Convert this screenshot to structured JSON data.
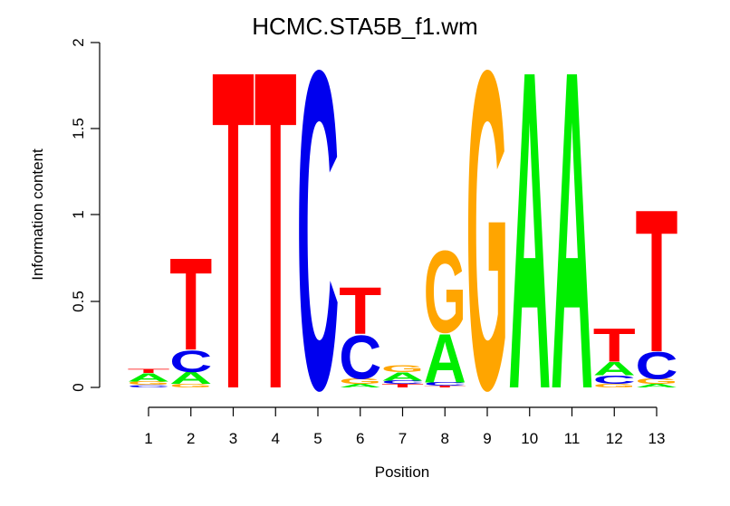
{
  "chart_data": {
    "type": "sequence-logo",
    "title": "HCMC.STA5B_f1.wm",
    "xlabel": "Position",
    "ylabel": "Information content",
    "ylim": [
      0,
      2
    ],
    "yticks": [
      "0",
      "0.5",
      "1",
      "1.5",
      "2"
    ],
    "ytick_values": [
      0,
      0.5,
      1,
      1.5,
      2
    ],
    "positions": [
      "1",
      "2",
      "3",
      "4",
      "5",
      "6",
      "7",
      "8",
      "9",
      "10",
      "11",
      "12",
      "13"
    ],
    "colors": {
      "A": "#00ee00",
      "C": "#0000ee",
      "G": "#ffa500",
      "T": "#ff0000"
    },
    "stacks": [
      [
        {
          "letter": "C",
          "height": 0.015
        },
        {
          "letter": "G",
          "height": 0.02
        },
        {
          "letter": "A",
          "height": 0.05
        },
        {
          "letter": "T",
          "height": 0.025
        }
      ],
      [
        {
          "letter": "G",
          "height": 0.02
        },
        {
          "letter": "A",
          "height": 0.07
        },
        {
          "letter": "C",
          "height": 0.13
        },
        {
          "letter": "T",
          "height": 0.55
        }
      ],
      [
        {
          "letter": "T",
          "height": 1.9
        }
      ],
      [
        {
          "letter": "T",
          "height": 1.9
        }
      ],
      [
        {
          "letter": "C",
          "height": 1.9
        }
      ],
      [
        {
          "letter": "A",
          "height": 0.02
        },
        {
          "letter": "G",
          "height": 0.03
        },
        {
          "letter": "C",
          "height": 0.26
        },
        {
          "letter": "T",
          "height": 0.28
        }
      ],
      [
        {
          "letter": "T",
          "height": 0.02
        },
        {
          "letter": "C",
          "height": 0.02
        },
        {
          "letter": "A",
          "height": 0.05
        },
        {
          "letter": "G",
          "height": 0.04
        }
      ],
      [
        {
          "letter": "T",
          "height": 0.01
        },
        {
          "letter": "C",
          "height": 0.02
        },
        {
          "letter": "A",
          "height": 0.29
        },
        {
          "letter": "G",
          "height": 0.49
        }
      ],
      [
        {
          "letter": "G",
          "height": 1.9
        }
      ],
      [
        {
          "letter": "A",
          "height": 1.9
        }
      ],
      [
        {
          "letter": "A",
          "height": 1.9
        }
      ],
      [
        {
          "letter": "G",
          "height": 0.02
        },
        {
          "letter": "C",
          "height": 0.05
        },
        {
          "letter": "A",
          "height": 0.08
        },
        {
          "letter": "T",
          "height": 0.2
        }
      ],
      [
        {
          "letter": "A",
          "height": 0.02
        },
        {
          "letter": "G",
          "height": 0.03
        },
        {
          "letter": "C",
          "height": 0.16
        },
        {
          "letter": "T",
          "height": 0.85
        }
      ]
    ]
  }
}
